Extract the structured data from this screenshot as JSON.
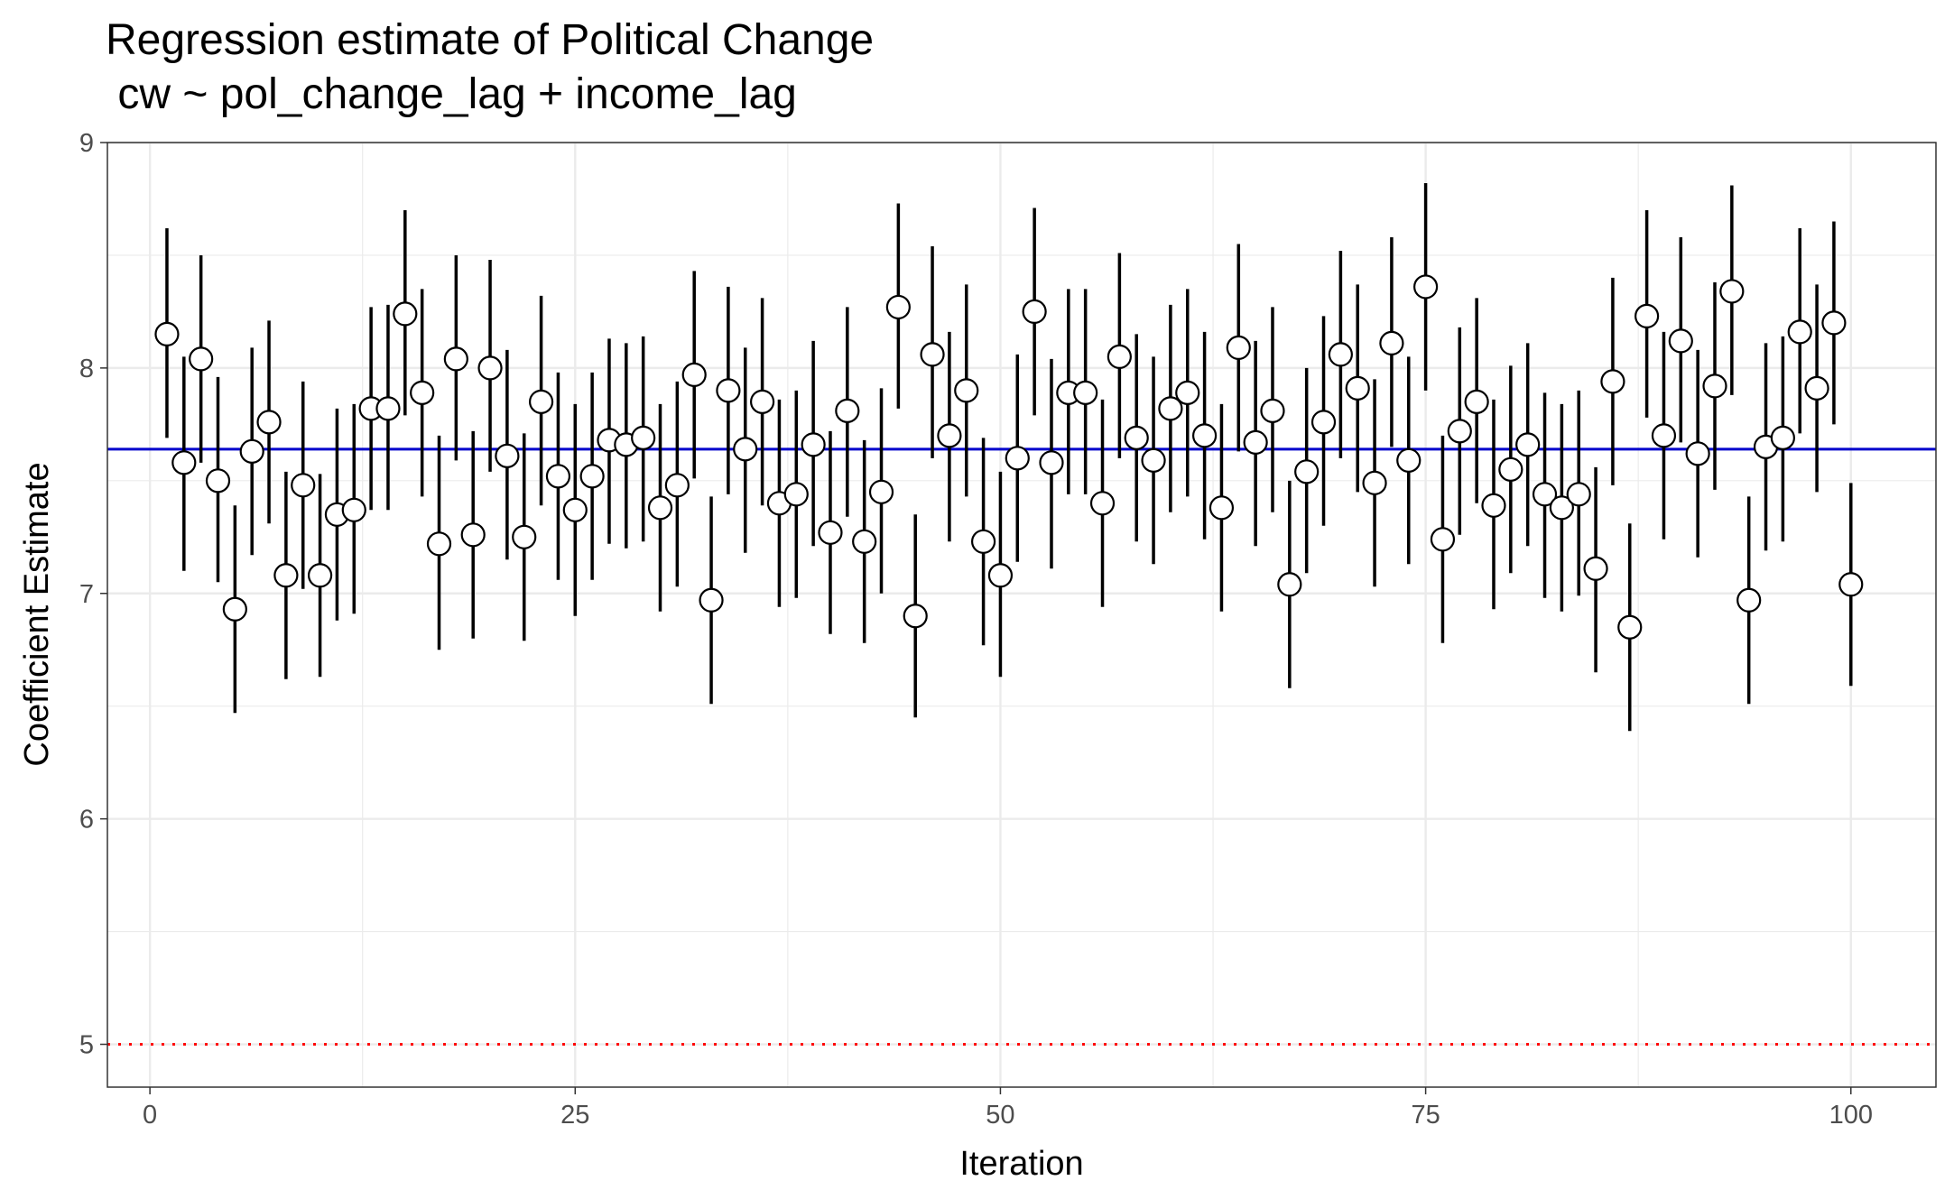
{
  "chart_data": {
    "type": "scatter",
    "title": "Regression estimate of Political Change",
    "subtitle": " cw ~ pol_change_lag + income_lag",
    "xlabel": "Iteration",
    "ylabel": "Coefficient Estimate",
    "xlim": [
      -2.5,
      105
    ],
    "ylim": [
      4.81,
      9.0
    ],
    "x_ticks": [
      0,
      25,
      50,
      75,
      100
    ],
    "y_ticks": [
      5,
      6,
      7,
      8,
      9
    ],
    "grid": true,
    "legend": "none",
    "colors": {
      "points_fill": "#ffffff",
      "points_stroke": "#000000",
      "errorbar": "#000000",
      "mean_line": "#0000cc",
      "reference_line": "#ff0000",
      "grid": "#ebebeb",
      "panel_border": "#333333"
    },
    "reference_lines": [
      {
        "y": 7.64,
        "style": "solid",
        "color": "#0000cc"
      },
      {
        "y": 5.0,
        "style": "dotted",
        "color": "#ff0000"
      }
    ],
    "series": [
      {
        "x": [
          1,
          2,
          3,
          4,
          5,
          6,
          7,
          8,
          9,
          10,
          11,
          12,
          13,
          14,
          15,
          16,
          17,
          18,
          19,
          20,
          21,
          22,
          23,
          24,
          25,
          26,
          27,
          28,
          29,
          30,
          31,
          32,
          33,
          34,
          35,
          36,
          37,
          38,
          39,
          40,
          41,
          42,
          43,
          44,
          45,
          46,
          47,
          48,
          49,
          50,
          51,
          52,
          53,
          54,
          55,
          56,
          57,
          58,
          59,
          60,
          61,
          62,
          63,
          64,
          65,
          66,
          67,
          68,
          69,
          70,
          71,
          72,
          73,
          74,
          75,
          76,
          77,
          78,
          79,
          80,
          81,
          82,
          83,
          84,
          85,
          86,
          87,
          88,
          89,
          90,
          91,
          92,
          93,
          94,
          95,
          96,
          97,
          98,
          99,
          100
        ],
        "y": [
          8.15,
          7.58,
          8.04,
          7.5,
          6.93,
          7.63,
          7.76,
          7.08,
          7.48,
          7.08,
          7.35,
          7.37,
          7.82,
          7.82,
          8.24,
          7.89,
          7.22,
          8.04,
          7.26,
          8.0,
          7.61,
          7.25,
          7.85,
          7.52,
          7.37,
          7.52,
          7.68,
          7.66,
          7.69,
          7.38,
          7.48,
          7.97,
          6.97,
          7.9,
          7.64,
          7.85,
          7.4,
          7.44,
          7.66,
          7.27,
          7.81,
          7.23,
          7.45,
          8.27,
          6.9,
          8.06,
          7.7,
          7.9,
          7.23,
          7.08,
          7.6,
          8.25,
          7.58,
          7.89,
          7.89,
          7.4,
          8.05,
          7.69,
          7.59,
          7.82,
          7.89,
          7.7,
          7.38,
          8.09,
          7.67,
          7.81,
          7.04,
          7.54,
          7.76,
          8.06,
          7.91,
          7.49,
          8.11,
          7.59,
          8.36,
          7.24,
          7.72,
          7.85,
          7.39,
          7.55,
          7.66,
          7.44,
          7.38,
          7.44,
          7.11,
          7.94,
          6.85,
          8.23,
          7.7,
          8.12,
          7.62,
          7.92,
          8.34,
          6.97,
          7.65,
          7.69,
          8.16,
          7.91,
          8.2,
          7.04
        ],
        "lower": [
          7.69,
          7.1,
          7.58,
          7.05,
          6.47,
          7.17,
          7.31,
          6.62,
          7.02,
          6.63,
          6.88,
          6.91,
          7.37,
          7.37,
          7.79,
          7.43,
          6.75,
          7.59,
          6.8,
          7.54,
          7.15,
          6.79,
          7.39,
          7.06,
          6.9,
          7.06,
          7.22,
          7.2,
          7.23,
          6.92,
          7.03,
          7.51,
          6.51,
          7.44,
          7.18,
          7.39,
          6.94,
          6.98,
          7.21,
          6.82,
          7.34,
          6.78,
          7.0,
          7.82,
          6.45,
          7.6,
          7.23,
          7.43,
          6.77,
          6.63,
          7.14,
          7.79,
          7.11,
          7.44,
          7.44,
          6.94,
          7.6,
          7.23,
          7.13,
          7.36,
          7.43,
          7.24,
          6.92,
          7.63,
          7.21,
          7.36,
          6.58,
          7.09,
          7.3,
          7.6,
          7.45,
          7.03,
          7.65,
          7.13,
          7.9,
          6.78,
          7.26,
          7.4,
          6.93,
          7.09,
          7.21,
          6.98,
          6.92,
          6.99,
          6.65,
          7.48,
          6.39,
          7.78,
          7.24,
          7.67,
          7.16,
          7.46,
          7.88,
          6.51,
          7.19,
          7.23,
          7.71,
          7.45,
          7.75,
          6.59
        ],
        "upper": [
          8.62,
          8.05,
          8.5,
          7.96,
          7.39,
          8.09,
          8.21,
          7.54,
          7.94,
          7.53,
          7.82,
          7.84,
          8.27,
          8.28,
          8.7,
          8.35,
          7.7,
          8.5,
          7.72,
          8.48,
          8.08,
          7.71,
          8.32,
          7.98,
          7.84,
          7.98,
          8.13,
          8.11,
          8.14,
          7.84,
          7.94,
          8.43,
          7.43,
          8.36,
          8.09,
          8.31,
          7.86,
          7.9,
          8.12,
          7.72,
          8.27,
          7.68,
          7.91,
          8.73,
          7.35,
          8.54,
          8.16,
          8.37,
          7.69,
          7.54,
          8.06,
          8.71,
          8.04,
          8.35,
          8.35,
          7.86,
          8.51,
          8.15,
          8.05,
          8.28,
          8.35,
          8.16,
          7.84,
          8.55,
          8.12,
          8.27,
          7.5,
          8.0,
          8.23,
          8.52,
          8.37,
          7.95,
          8.58,
          8.05,
          8.82,
          7.7,
          8.18,
          8.31,
          7.86,
          8.01,
          8.11,
          7.89,
          7.84,
          7.9,
          7.56,
          8.4,
          7.31,
          8.7,
          8.16,
          8.58,
          8.08,
          8.38,
          8.81,
          7.43,
          8.11,
          8.14,
          8.62,
          8.37,
          8.65,
          7.49
        ]
      }
    ]
  }
}
